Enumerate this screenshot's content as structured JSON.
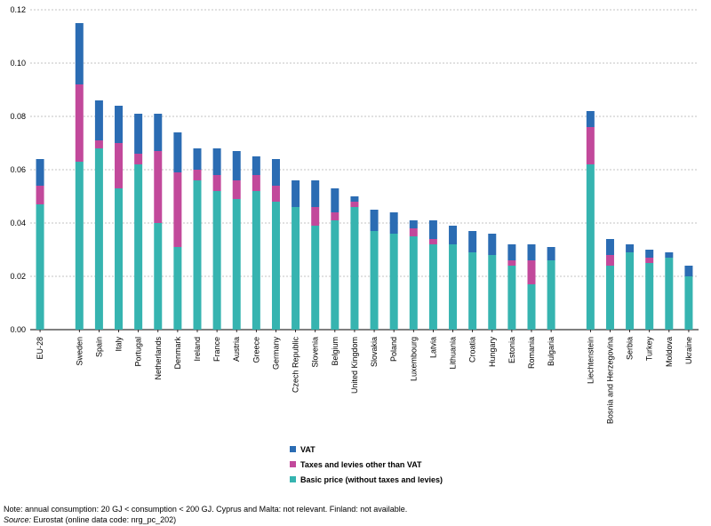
{
  "legend": {
    "vat": "VAT",
    "taxes": "Taxes and levies other than VAT",
    "basic": "Basic price (without taxes and levies)"
  },
  "notes": {
    "note": "Note: annual consumption: 20 GJ < consumption < 200 GJ. Cyprus and Malta: not relevant. Finland: not available.",
    "source_label": "Source:",
    "source_text": " Eurostat (online data code: nrg_pc_202)"
  },
  "colors": {
    "vat": "#2b6cb3",
    "taxes": "#c2499b",
    "basic": "#36b4b0",
    "grid": "#b0b0b0"
  },
  "chart_data": {
    "type": "bar",
    "stacked": true,
    "ylim": [
      0,
      0.12
    ],
    "yticks": [
      "0.00",
      "0.02",
      "0.04",
      "0.06",
      "0.08",
      "0.10",
      "0.12"
    ],
    "grid": true,
    "legend_position": "bottom-center",
    "categories": [
      "EU-28",
      "",
      "Sweden",
      "Spain",
      "Italy",
      "Portugal",
      "Netherlands",
      "Denmark",
      "Ireland",
      "France",
      "Austria",
      "Greece",
      "Germany",
      "Czech Republic",
      "Slovenia",
      "Belgium",
      "United Kingdom",
      "Slovakia",
      "Poland",
      "Luxembourg",
      "Latvia",
      "Lithuania",
      "Croatia",
      "Hungary",
      "Estonia",
      "Romania",
      "Bulgaria",
      "",
      "Liechtenstein",
      "Bosnia and Herzegovina",
      "Serbia",
      "Turkey",
      "Moldova",
      "Ukraine"
    ],
    "series": [
      {
        "name": "Basic price (without taxes and levies)",
        "key": "basic",
        "values": [
          0.047,
          null,
          0.063,
          0.068,
          0.053,
          0.062,
          0.04,
          0.031,
          0.056,
          0.052,
          0.049,
          0.052,
          0.048,
          0.046,
          0.039,
          0.041,
          0.046,
          0.037,
          0.036,
          0.035,
          0.032,
          0.032,
          0.029,
          0.028,
          0.024,
          0.017,
          0.026,
          null,
          0.062,
          0.024,
          0.029,
          0.025,
          0.027,
          0.02
        ]
      },
      {
        "name": "Taxes and levies other than VAT",
        "key": "taxes",
        "values": [
          0.007,
          null,
          0.029,
          0.003,
          0.017,
          0.004,
          0.027,
          0.028,
          0.004,
          0.006,
          0.007,
          0.006,
          0.006,
          0.0,
          0.007,
          0.003,
          0.002,
          0.0,
          0.0,
          0.003,
          0.002,
          0.0,
          0.0,
          0.0,
          0.002,
          0.009,
          0.0,
          null,
          0.014,
          0.004,
          0.0,
          0.002,
          0.0,
          0.0
        ]
      },
      {
        "name": "VAT",
        "key": "vat",
        "values": [
          0.01,
          null,
          0.023,
          0.015,
          0.014,
          0.015,
          0.014,
          0.015,
          0.008,
          0.01,
          0.011,
          0.007,
          0.01,
          0.01,
          0.01,
          0.009,
          0.002,
          0.008,
          0.008,
          0.003,
          0.007,
          0.007,
          0.008,
          0.008,
          0.006,
          0.006,
          0.005,
          null,
          0.006,
          0.006,
          0.003,
          0.003,
          0.002,
          0.004
        ]
      }
    ]
  }
}
